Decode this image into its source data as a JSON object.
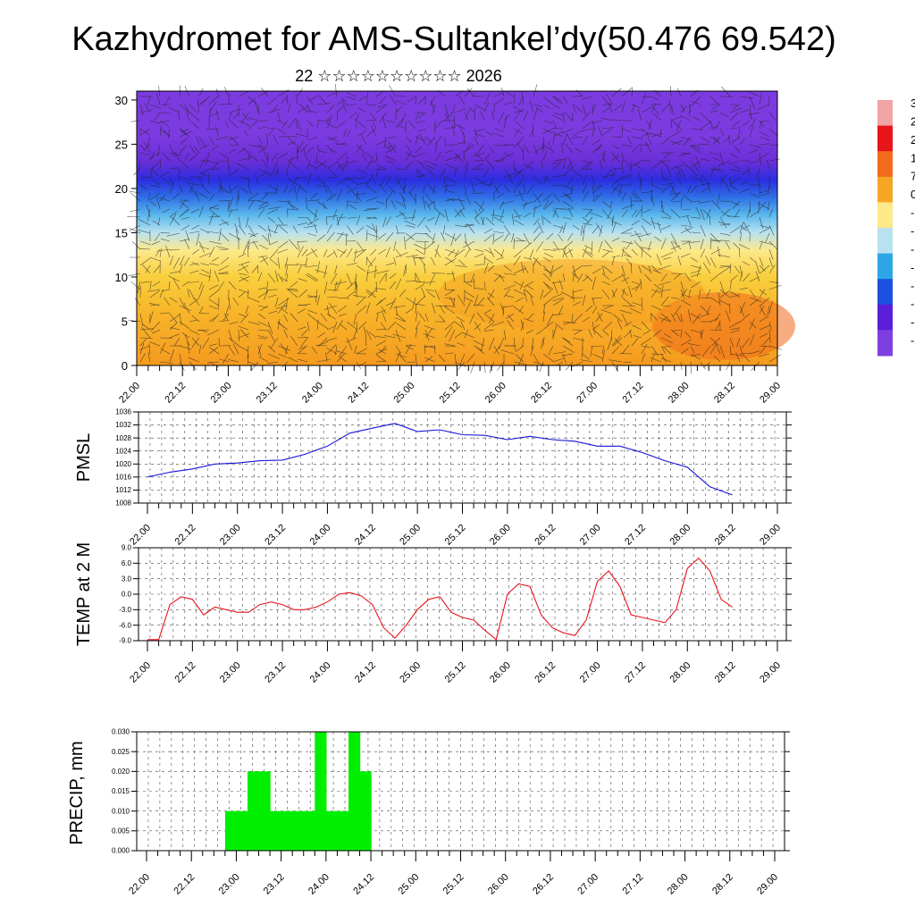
{
  "title": "Kazhydromet for AMS-Sultankel’dy(50.476 69.542)",
  "subtitle": "22 ☆☆☆☆☆☆☆☆☆☆ 2026",
  "x_ticks": [
    "22.00",
    "22.12",
    "23.00",
    "23.12",
    "24.00",
    "24.12",
    "25.00",
    "25.12",
    "26.00",
    "26.12",
    "27.00",
    "27.12",
    "28.00",
    "28.12",
    "29.00"
  ],
  "colorbar": {
    "labels": [
      "3",
      "2",
      "2",
      "1",
      "7",
      "0",
      "-",
      "-",
      "-",
      "-",
      "-",
      "-",
      "-",
      "-"
    ],
    "colors": [
      "#f2a3a3",
      "#e8151b",
      "#f26b1c",
      "#f5a623",
      "#fce98a",
      "#b9e2f0",
      "#2ea6e6",
      "#1c4fe0",
      "#5a1fd6",
      "#7f3fe0"
    ]
  },
  "chart_data": [
    {
      "type": "heatmap",
      "name": "cross-section",
      "description_of_field": "temperature field with wind barbs by level",
      "y_ticks": [
        "0",
        "5",
        "10",
        "15",
        "20",
        "25",
        "30"
      ],
      "ylim": [
        0,
        31
      ],
      "xlim": [
        0,
        14
      ],
      "bands_y": [
        0,
        6,
        10,
        13,
        15,
        17,
        19,
        21,
        23,
        26,
        31
      ],
      "band_colors": [
        "#f59a1f",
        "#f8b52a",
        "#f9cf3d",
        "#fde98a",
        "#b9e2f0",
        "#5ab8ec",
        "#2f6fe6",
        "#2a2ee0",
        "#6a2ed8",
        "#7c3be0"
      ]
    },
    {
      "type": "line",
      "ylabel": "PMSL",
      "ylim": [
        1008,
        1036
      ],
      "y_ticks": [
        "1008",
        "1012",
        "1016",
        "1020",
        "1024",
        "1028",
        "1032",
        "1036"
      ],
      "color": "#1515d8",
      "x": [
        0,
        0.5,
        1,
        1.5,
        2,
        2.5,
        3,
        3.5,
        4,
        4.5,
        5,
        5.5,
        6,
        6.5,
        7,
        7.5,
        8,
        8.5,
        9,
        9.5,
        10,
        10.5,
        11,
        11.5,
        12,
        12.5,
        13
      ],
      "values": [
        1016,
        1017.5,
        1018.5,
        1020,
        1020.3,
        1021,
        1021.2,
        1023,
        1025.5,
        1029.5,
        1031,
        1032.5,
        1030,
        1030.5,
        1029,
        1028.8,
        1027.5,
        1028.5,
        1027.5,
        1027,
        1025.5,
        1025.5,
        1023.5,
        1021,
        1019,
        1013,
        1010.5
      ]
    },
    {
      "type": "line",
      "ylabel": "TEMP at 2 M",
      "ylim": [
        -9,
        9
      ],
      "y_ticks": [
        "-9.0",
        "-6.0",
        "-3.0",
        "0.0",
        "3.0",
        "6.0",
        "9.0"
      ],
      "color": "#e8151b",
      "x": [
        0,
        0.25,
        0.5,
        0.75,
        1,
        1.25,
        1.5,
        1.75,
        2,
        2.25,
        2.5,
        2.75,
        3,
        3.25,
        3.5,
        3.75,
        4,
        4.25,
        4.5,
        4.75,
        5,
        5.25,
        5.5,
        5.75,
        6,
        6.25,
        6.5,
        6.75,
        7,
        7.25,
        7.5,
        7.75,
        8,
        8.25,
        8.5,
        8.75,
        9,
        9.25,
        9.5,
        9.75,
        10,
        10.25,
        10.5,
        10.75,
        11,
        11.25,
        11.5,
        11.75,
        12,
        12.25,
        12.5,
        12.75,
        13
      ],
      "values": [
        -8.8,
        -8.8,
        -2,
        -0.5,
        -1,
        -4,
        -2.5,
        -3,
        -3.5,
        -3.5,
        -2,
        -1.5,
        -2,
        -3,
        -3,
        -2.5,
        -1.5,
        0,
        0.3,
        -0.3,
        -2,
        -6.5,
        -8.5,
        -6,
        -3,
        -1,
        -0.5,
        -3.5,
        -4.5,
        -5,
        -7,
        -8.8,
        0,
        2,
        1.5,
        -4,
        -6.5,
        -7.5,
        -8,
        -5,
        2.5,
        4.5,
        1.5,
        -4,
        -4.5,
        -5,
        -5.5,
        -3,
        5,
        7,
        4.5,
        -1,
        -2.5
      ]
    },
    {
      "type": "bar",
      "ylabel": "PRECIP, mm",
      "ylim": [
        0,
        0.03
      ],
      "y_ticks": [
        "0.000",
        "0.005",
        "0.010",
        "0.015",
        "0.020",
        "0.025",
        "0.030"
      ],
      "color": "#00ef00",
      "x": [
        1.75,
        2,
        2.25,
        2.5,
        2.75,
        3,
        3.25,
        3.5,
        3.75,
        4,
        4.25,
        4.5,
        4.75,
        5
      ],
      "values": [
        0.01,
        0.01,
        0.02,
        0.02,
        0.01,
        0.01,
        0.01,
        0.01,
        0.03,
        0.01,
        0.01,
        0.03,
        0.02,
        0
      ]
    }
  ]
}
